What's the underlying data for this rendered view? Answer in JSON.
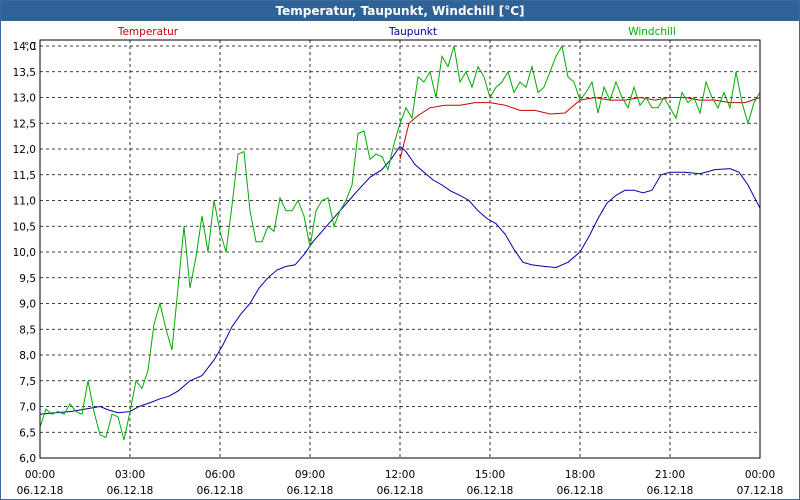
{
  "window": {
    "title": "Temperatur, Taupunkt, Windchill [°C]"
  },
  "chart_data": {
    "type": "line",
    "title": "Temperatur, Taupunkt, Windchill [°C]",
    "y_unit_label": "°C",
    "ylim": [
      6.0,
      14.0
    ],
    "y_ticks": [
      "6,0",
      "6,5",
      "7,0",
      "7,5",
      "8,0",
      "8,5",
      "9,0",
      "9,5",
      "10,0",
      "10,5",
      "11,0",
      "11,5",
      "12,0",
      "12,5",
      "13,0",
      "13,5",
      "14,0"
    ],
    "xlim_hours": [
      0,
      24
    ],
    "x_ticks": [
      {
        "time": "00:00",
        "date": "06.12.18"
      },
      {
        "time": "03:00",
        "date": "06.12.18"
      },
      {
        "time": "06:00",
        "date": "06.12.18"
      },
      {
        "time": "09:00",
        "date": "06.12.18"
      },
      {
        "time": "12:00",
        "date": "06.12.18"
      },
      {
        "time": "15:00",
        "date": "06.12.18"
      },
      {
        "time": "18:00",
        "date": "06.12.18"
      },
      {
        "time": "21:00",
        "date": "06.12.18"
      },
      {
        "time": "00:00",
        "date": "07.12.18"
      }
    ],
    "grid": true,
    "legend_placement": "top",
    "series": [
      {
        "name": "Temperatur",
        "color": "#cc0000",
        "points": [
          [
            12.0,
            11.8
          ],
          [
            12.3,
            12.5
          ],
          [
            12.6,
            12.65
          ],
          [
            13.0,
            12.8
          ],
          [
            13.5,
            12.85
          ],
          [
            14.0,
            12.85
          ],
          [
            14.5,
            12.9
          ],
          [
            15.0,
            12.9
          ],
          [
            15.5,
            12.85
          ],
          [
            16.0,
            12.75
          ],
          [
            16.5,
            12.75
          ],
          [
            17.0,
            12.68
          ],
          [
            17.5,
            12.7
          ],
          [
            18.0,
            12.95
          ],
          [
            18.5,
            13.0
          ],
          [
            19.0,
            12.95
          ],
          [
            19.5,
            12.95
          ],
          [
            20.0,
            13.0
          ],
          [
            20.5,
            12.95
          ],
          [
            21.0,
            13.0
          ],
          [
            21.5,
            13.0
          ],
          [
            22.0,
            12.95
          ],
          [
            22.5,
            12.95
          ],
          [
            23.0,
            12.9
          ],
          [
            23.5,
            12.9
          ],
          [
            24.0,
            13.0
          ]
        ]
      },
      {
        "name": "Taupunkt",
        "color": "#0000aa",
        "points": [
          [
            0.0,
            6.85
          ],
          [
            0.5,
            6.88
          ],
          [
            1.0,
            6.9
          ],
          [
            1.5,
            6.95
          ],
          [
            2.0,
            7.0
          ],
          [
            2.3,
            6.93
          ],
          [
            2.6,
            6.88
          ],
          [
            3.0,
            6.9
          ],
          [
            3.3,
            7.0
          ],
          [
            3.7,
            7.08
          ],
          [
            4.0,
            7.15
          ],
          [
            4.3,
            7.2
          ],
          [
            4.6,
            7.3
          ],
          [
            5.0,
            7.5
          ],
          [
            5.4,
            7.6
          ],
          [
            5.8,
            7.9
          ],
          [
            6.1,
            8.2
          ],
          [
            6.4,
            8.55
          ],
          [
            6.7,
            8.8
          ],
          [
            7.0,
            9.0
          ],
          [
            7.3,
            9.3
          ],
          [
            7.6,
            9.5
          ],
          [
            7.9,
            9.65
          ],
          [
            8.2,
            9.72
          ],
          [
            8.5,
            9.75
          ],
          [
            8.8,
            9.95
          ],
          [
            9.1,
            10.2
          ],
          [
            9.4,
            10.4
          ],
          [
            9.7,
            10.6
          ],
          [
            10.0,
            10.8
          ],
          [
            10.3,
            11.0
          ],
          [
            10.6,
            11.2
          ],
          [
            11.0,
            11.45
          ],
          [
            11.4,
            11.6
          ],
          [
            11.7,
            11.8
          ],
          [
            12.0,
            12.05
          ],
          [
            12.2,
            11.95
          ],
          [
            12.5,
            11.7
          ],
          [
            12.8,
            11.55
          ],
          [
            13.1,
            11.4
          ],
          [
            13.4,
            11.3
          ],
          [
            13.7,
            11.18
          ],
          [
            14.0,
            11.1
          ],
          [
            14.3,
            11.0
          ],
          [
            14.6,
            10.8
          ],
          [
            14.9,
            10.65
          ],
          [
            15.2,
            10.55
          ],
          [
            15.5,
            10.35
          ],
          [
            15.8,
            10.05
          ],
          [
            16.1,
            9.8
          ],
          [
            16.4,
            9.75
          ],
          [
            16.8,
            9.72
          ],
          [
            17.2,
            9.7
          ],
          [
            17.6,
            9.8
          ],
          [
            18.0,
            10.0
          ],
          [
            18.3,
            10.3
          ],
          [
            18.6,
            10.65
          ],
          [
            18.9,
            10.95
          ],
          [
            19.2,
            11.1
          ],
          [
            19.5,
            11.2
          ],
          [
            19.8,
            11.2
          ],
          [
            20.1,
            11.15
          ],
          [
            20.4,
            11.2
          ],
          [
            20.7,
            11.5
          ],
          [
            21.0,
            11.55
          ],
          [
            21.5,
            11.55
          ],
          [
            22.0,
            11.52
          ],
          [
            22.5,
            11.6
          ],
          [
            23.0,
            11.62
          ],
          [
            23.3,
            11.55
          ],
          [
            23.6,
            11.3
          ],
          [
            24.0,
            10.85
          ]
        ]
      },
      {
        "name": "Windchill",
        "color": "#00aa00",
        "points": [
          [
            0.0,
            6.6
          ],
          [
            0.2,
            6.95
          ],
          [
            0.4,
            6.85
          ],
          [
            0.6,
            6.9
          ],
          [
            0.8,
            6.85
          ],
          [
            1.0,
            7.05
          ],
          [
            1.2,
            6.9
          ],
          [
            1.4,
            6.85
          ],
          [
            1.6,
            7.5
          ],
          [
            1.8,
            6.9
          ],
          [
            2.0,
            6.45
          ],
          [
            2.2,
            6.4
          ],
          [
            2.4,
            6.85
          ],
          [
            2.6,
            6.8
          ],
          [
            2.8,
            6.35
          ],
          [
            3.0,
            6.9
          ],
          [
            3.2,
            7.5
          ],
          [
            3.4,
            7.35
          ],
          [
            3.6,
            7.7
          ],
          [
            3.8,
            8.6
          ],
          [
            4.0,
            9.0
          ],
          [
            4.2,
            8.5
          ],
          [
            4.4,
            8.1
          ],
          [
            4.6,
            9.3
          ],
          [
            4.8,
            10.5
          ],
          [
            5.0,
            9.3
          ],
          [
            5.2,
            9.9
          ],
          [
            5.4,
            10.7
          ],
          [
            5.6,
            10.0
          ],
          [
            5.8,
            11.0
          ],
          [
            6.0,
            10.4
          ],
          [
            6.2,
            10.0
          ],
          [
            6.4,
            10.9
          ],
          [
            6.6,
            11.9
          ],
          [
            6.8,
            11.95
          ],
          [
            7.0,
            10.8
          ],
          [
            7.2,
            10.2
          ],
          [
            7.4,
            10.2
          ],
          [
            7.6,
            10.5
          ],
          [
            7.8,
            10.4
          ],
          [
            8.0,
            11.05
          ],
          [
            8.2,
            10.8
          ],
          [
            8.4,
            10.8
          ],
          [
            8.6,
            11.0
          ],
          [
            8.8,
            10.7
          ],
          [
            9.0,
            10.1
          ],
          [
            9.2,
            10.8
          ],
          [
            9.4,
            11.0
          ],
          [
            9.6,
            11.05
          ],
          [
            9.8,
            10.5
          ],
          [
            10.0,
            10.8
          ],
          [
            10.2,
            11.0
          ],
          [
            10.4,
            11.3
          ],
          [
            10.6,
            12.3
          ],
          [
            10.8,
            12.35
          ],
          [
            11.0,
            11.8
          ],
          [
            11.2,
            11.9
          ],
          [
            11.4,
            11.85
          ],
          [
            11.6,
            11.6
          ],
          [
            11.8,
            12.1
          ],
          [
            12.0,
            12.5
          ],
          [
            12.2,
            12.8
          ],
          [
            12.4,
            12.6
          ],
          [
            12.6,
            13.4
          ],
          [
            12.8,
            13.3
          ],
          [
            13.0,
            13.5
          ],
          [
            13.2,
            13.0
          ],
          [
            13.4,
            13.8
          ],
          [
            13.6,
            13.6
          ],
          [
            13.8,
            14.0
          ],
          [
            14.0,
            13.3
          ],
          [
            14.2,
            13.5
          ],
          [
            14.4,
            13.2
          ],
          [
            14.6,
            13.6
          ],
          [
            14.8,
            13.4
          ],
          [
            15.0,
            13.0
          ],
          [
            15.2,
            13.2
          ],
          [
            15.4,
            13.3
          ],
          [
            15.6,
            13.5
          ],
          [
            15.8,
            13.1
          ],
          [
            16.0,
            13.3
          ],
          [
            16.2,
            13.2
          ],
          [
            16.4,
            13.6
          ],
          [
            16.6,
            13.1
          ],
          [
            16.8,
            13.2
          ],
          [
            17.0,
            13.5
          ],
          [
            17.2,
            13.8
          ],
          [
            17.4,
            14.0
          ],
          [
            17.6,
            13.4
          ],
          [
            17.8,
            13.3
          ],
          [
            18.0,
            12.95
          ],
          [
            18.2,
            13.1
          ],
          [
            18.4,
            13.3
          ],
          [
            18.6,
            12.7
          ],
          [
            18.8,
            13.2
          ],
          [
            19.0,
            12.95
          ],
          [
            19.2,
            13.3
          ],
          [
            19.4,
            13.0
          ],
          [
            19.6,
            12.8
          ],
          [
            19.8,
            13.2
          ],
          [
            20.0,
            12.85
          ],
          [
            20.2,
            13.0
          ],
          [
            20.4,
            12.8
          ],
          [
            20.6,
            12.8
          ],
          [
            20.8,
            13.0
          ],
          [
            21.0,
            12.8
          ],
          [
            21.2,
            12.6
          ],
          [
            21.4,
            13.1
          ],
          [
            21.6,
            12.9
          ],
          [
            21.8,
            13.0
          ],
          [
            22.0,
            12.7
          ],
          [
            22.2,
            13.3
          ],
          [
            22.4,
            13.0
          ],
          [
            22.6,
            12.8
          ],
          [
            22.8,
            13.1
          ],
          [
            23.0,
            12.8
          ],
          [
            23.2,
            13.5
          ],
          [
            23.4,
            12.9
          ],
          [
            23.6,
            12.5
          ],
          [
            23.8,
            12.9
          ],
          [
            24.0,
            13.1
          ]
        ]
      }
    ]
  }
}
